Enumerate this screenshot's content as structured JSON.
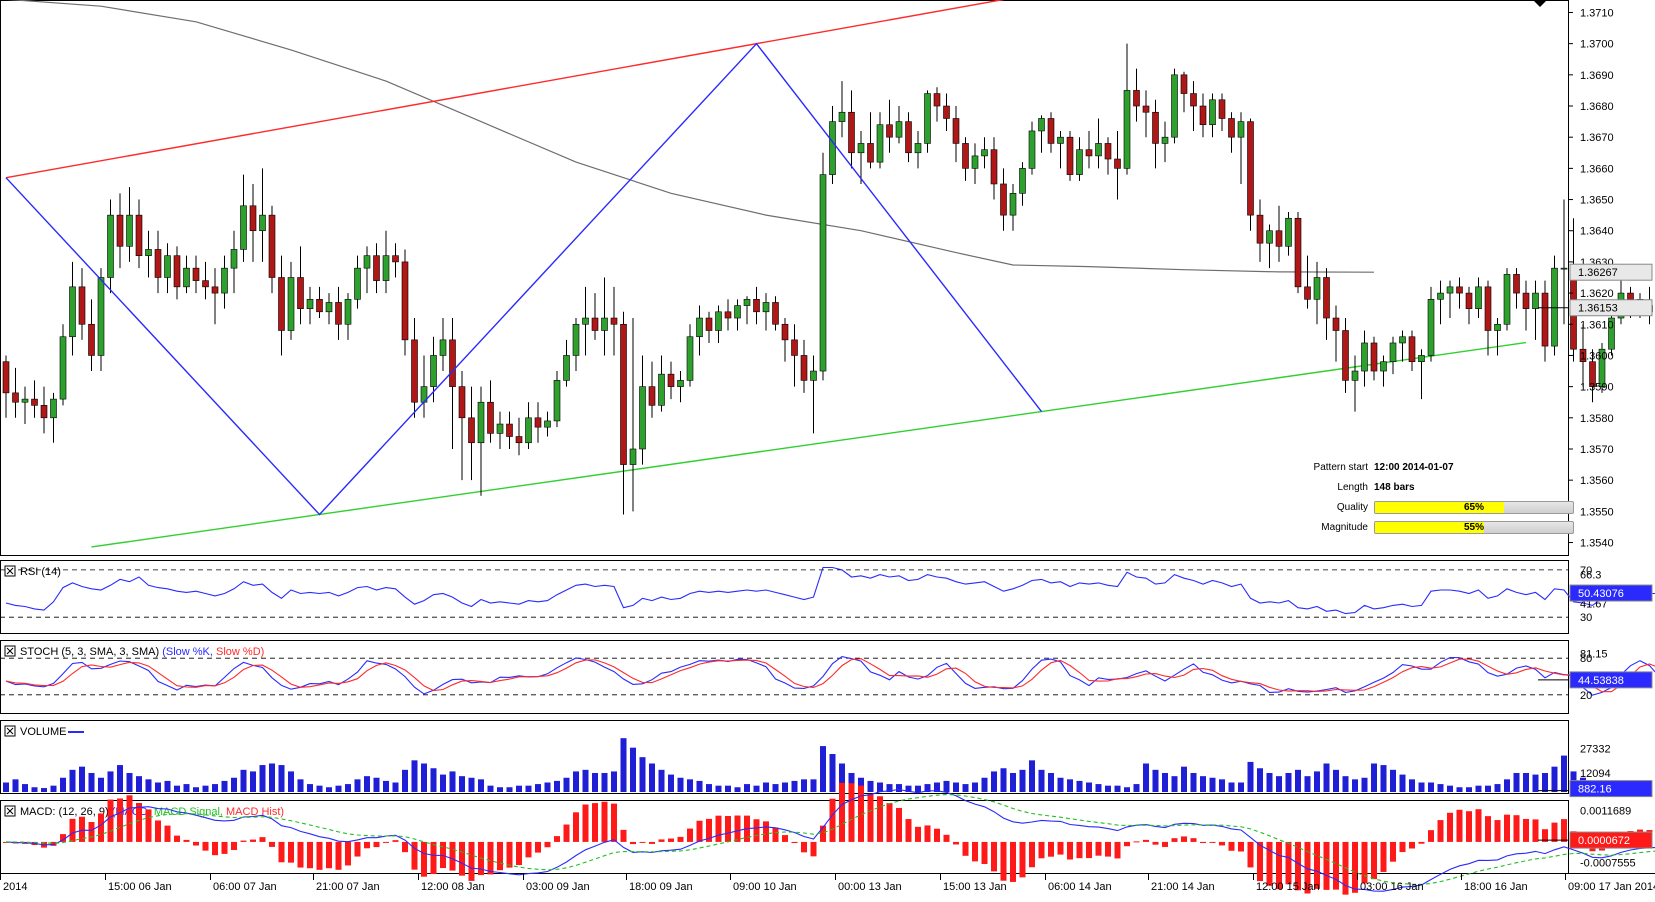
{
  "chart_data": {
    "type": "candlestick",
    "price_axis": {
      "ticks": [
        "1.3540",
        "1.3550",
        "1.3560",
        "1.3570",
        "1.3580",
        "1.3590",
        "1.3600",
        "1.3610",
        "1.3620",
        "1.3630",
        "1.3640",
        "1.3650",
        "1.3660",
        "1.3670",
        "1.3680",
        "1.3690",
        "1.3700",
        "1.3710"
      ],
      "range": [
        1.3536,
        1.3714
      ],
      "ma_value": "1.36267",
      "last_value": "1.36153"
    },
    "time_axis": [
      "2014",
      "15:00 06 Jan",
      "06:00 07 Jan",
      "21:00 07 Jan",
      "12:00 08 Jan",
      "03:00 09 Jan",
      "18:00 09 Jan",
      "09:00 10 Jan",
      "00:00 13 Jan",
      "15:00 13 Jan",
      "06:00 14 Jan",
      "21:00 14 Jan",
      "12:00 15 Jan",
      "03:00 16 Jan",
      "18:00 16 Jan",
      "09:00 17 Jan 2014"
    ],
    "pattern": {
      "zigzag": [
        [
          0,
          1.3657
        ],
        [
          33,
          1.3549
        ],
        [
          79,
          1.37
        ],
        [
          109,
          1.3582
        ]
      ],
      "resistance": [
        [
          0,
          1.3657
        ],
        [
          79,
          1.37
        ]
      ],
      "support": [
        [
          33,
          1.3549
        ],
        [
          109,
          1.3582
        ]
      ]
    },
    "moving_average": [
      [
        -8,
        1.3716
      ],
      [
        10,
        1.3712
      ],
      [
        20,
        1.3707
      ],
      [
        30,
        1.3698
      ],
      [
        40,
        1.3688
      ],
      [
        50,
        1.3675
      ],
      [
        60,
        1.3662
      ],
      [
        70,
        1.3652
      ],
      [
        80,
        1.3645
      ],
      [
        90,
        1.364
      ],
      [
        100,
        1.3633
      ],
      [
        106,
        1.3629
      ],
      [
        114,
        1.36285
      ],
      [
        124,
        1.36275
      ],
      [
        134,
        1.36268
      ],
      [
        144,
        1.36267
      ]
    ]
  },
  "candles": [
    [
      1.3598,
      1.36,
      1.358,
      1.3588
    ],
    [
      1.3588,
      1.3596,
      1.358,
      1.3585
    ],
    [
      1.3585,
      1.359,
      1.3578,
      1.3586
    ],
    [
      1.3586,
      1.3592,
      1.358,
      1.3584
    ],
    [
      1.3584,
      1.359,
      1.3575,
      1.358
    ],
    [
      1.358,
      1.3588,
      1.3572,
      1.3586
    ],
    [
      1.3586,
      1.361,
      1.3584,
      1.3606
    ],
    [
      1.3606,
      1.363,
      1.36,
      1.3622
    ],
    [
      1.3622,
      1.3628,
      1.3605,
      1.361
    ],
    [
      1.361,
      1.3618,
      1.3595,
      1.36
    ],
    [
      1.36,
      1.3628,
      1.3595,
      1.3625
    ],
    [
      1.3625,
      1.365,
      1.362,
      1.3645
    ],
    [
      1.3645,
      1.3652,
      1.3628,
      1.3635
    ],
    [
      1.3635,
      1.3654,
      1.363,
      1.3645
    ],
    [
      1.3645,
      1.365,
      1.3628,
      1.3632
    ],
    [
      1.3632,
      1.364,
      1.3625,
      1.3634
    ],
    [
      1.3634,
      1.364,
      1.362,
      1.3625
    ],
    [
      1.3625,
      1.3636,
      1.362,
      1.3632
    ],
    [
      1.3632,
      1.3635,
      1.3618,
      1.3622
    ],
    [
      1.3622,
      1.3632,
      1.362,
      1.3628
    ],
    [
      1.3628,
      1.3632,
      1.362,
      1.3624
    ],
    [
      1.3624,
      1.363,
      1.3618,
      1.3622
    ],
    [
      1.3622,
      1.3628,
      1.361,
      1.362
    ],
    [
      1.362,
      1.3632,
      1.3615,
      1.3628
    ],
    [
      1.3628,
      1.364,
      1.362,
      1.3634
    ],
    [
      1.3634,
      1.3658,
      1.363,
      1.3648
    ],
    [
      1.3648,
      1.3655,
      1.363,
      1.364
    ],
    [
      1.364,
      1.366,
      1.363,
      1.3645
    ],
    [
      1.3645,
      1.3648,
      1.362,
      1.3625
    ],
    [
      1.3625,
      1.3632,
      1.36,
      1.3608
    ],
    [
      1.3608,
      1.363,
      1.3605,
      1.3625
    ],
    [
      1.3625,
      1.3635,
      1.361,
      1.3615
    ],
    [
      1.3615,
      1.3622,
      1.361,
      1.3618
    ],
    [
      1.3618,
      1.3622,
      1.3612,
      1.3614
    ],
    [
      1.3614,
      1.362,
      1.361,
      1.3617
    ],
    [
      1.3617,
      1.3622,
      1.3605,
      1.361
    ],
    [
      1.361,
      1.362,
      1.3605,
      1.3618
    ],
    [
      1.3618,
      1.3632,
      1.3615,
      1.3628
    ],
    [
      1.3628,
      1.3635,
      1.362,
      1.3632
    ],
    [
      1.3632,
      1.3636,
      1.362,
      1.3624
    ],
    [
      1.3624,
      1.364,
      1.362,
      1.3632
    ],
    [
      1.3632,
      1.3636,
      1.3625,
      1.363
    ],
    [
      1.363,
      1.3634,
      1.36,
      1.3605
    ],
    [
      1.3605,
      1.3612,
      1.358,
      1.3585
    ],
    [
      1.3585,
      1.36,
      1.358,
      1.359
    ],
    [
      1.359,
      1.3606,
      1.3585,
      1.36
    ],
    [
      1.36,
      1.3612,
      1.3595,
      1.3605
    ],
    [
      1.3605,
      1.3612,
      1.357,
      1.359
    ],
    [
      1.359,
      1.3595,
      1.356,
      1.358
    ],
    [
      1.358,
      1.359,
      1.356,
      1.3572
    ],
    [
      1.3572,
      1.359,
      1.3555,
      1.3585
    ],
    [
      1.3585,
      1.3592,
      1.3572,
      1.3575
    ],
    [
      1.3575,
      1.3582,
      1.357,
      1.3578
    ],
    [
      1.3578,
      1.3582,
      1.357,
      1.3574
    ],
    [
      1.3574,
      1.358,
      1.3568,
      1.3572
    ],
    [
      1.3572,
      1.3585,
      1.357,
      1.358
    ],
    [
      1.358,
      1.3585,
      1.3572,
      1.3577
    ],
    [
      1.3577,
      1.3582,
      1.3574,
      1.3579
    ],
    [
      1.3579,
      1.3595,
      1.3577,
      1.3592
    ],
    [
      1.3592,
      1.3605,
      1.359,
      1.36
    ],
    [
      1.36,
      1.3612,
      1.3595,
      1.361
    ],
    [
      1.361,
      1.3622,
      1.36,
      1.3612
    ],
    [
      1.3612,
      1.362,
      1.3605,
      1.3608
    ],
    [
      1.3608,
      1.3625,
      1.36,
      1.3612
    ],
    [
      1.3612,
      1.3622,
      1.36,
      1.361
    ],
    [
      1.361,
      1.3614,
      1.3549,
      1.3565
    ],
    [
      1.3565,
      1.3612,
      1.355,
      1.357
    ],
    [
      1.357,
      1.36,
      1.3565,
      1.359
    ],
    [
      1.359,
      1.3598,
      1.358,
      1.3584
    ],
    [
      1.3584,
      1.36,
      1.3582,
      1.3594
    ],
    [
      1.3594,
      1.3598,
      1.3586,
      1.359
    ],
    [
      1.359,
      1.3595,
      1.3585,
      1.3592
    ],
    [
      1.3592,
      1.361,
      1.359,
      1.3606
    ],
    [
      1.3606,
      1.3616,
      1.36,
      1.3612
    ],
    [
      1.3612,
      1.3614,
      1.3604,
      1.3608
    ],
    [
      1.3608,
      1.3616,
      1.3604,
      1.3614
    ],
    [
      1.3614,
      1.3618,
      1.3608,
      1.3612
    ],
    [
      1.3612,
      1.3618,
      1.3608,
      1.3616
    ],
    [
      1.3616,
      1.3619,
      1.361,
      1.3618
    ],
    [
      1.3618,
      1.3622,
      1.361,
      1.3614
    ],
    [
      1.3614,
      1.362,
      1.3608,
      1.3617
    ],
    [
      1.3617,
      1.3619,
      1.3608,
      1.361
    ],
    [
      1.361,
      1.3612,
      1.3598,
      1.3605
    ],
    [
      1.3605,
      1.361,
      1.359,
      1.36
    ],
    [
      1.36,
      1.3605,
      1.3588,
      1.3592
    ],
    [
      1.3592,
      1.36,
      1.3575,
      1.3595
    ],
    [
      1.3595,
      1.3665,
      1.3592,
      1.3658
    ],
    [
      1.3658,
      1.368,
      1.3655,
      1.3675
    ],
    [
      1.3675,
      1.3688,
      1.367,
      1.3678
    ],
    [
      1.3678,
      1.3685,
      1.366,
      1.3665
    ],
    [
      1.3665,
      1.3672,
      1.3655,
      1.3668
    ],
    [
      1.3668,
      1.3678,
      1.366,
      1.3662
    ],
    [
      1.3662,
      1.3678,
      1.366,
      1.3674
    ],
    [
      1.3674,
      1.3682,
      1.3665,
      1.367
    ],
    [
      1.367,
      1.368,
      1.3668,
      1.3675
    ],
    [
      1.3675,
      1.3678,
      1.3662,
      1.3665
    ],
    [
      1.3665,
      1.3672,
      1.366,
      1.3668
    ],
    [
      1.3668,
      1.3685,
      1.3665,
      1.3684
    ],
    [
      1.3684,
      1.3686,
      1.3675,
      1.368
    ],
    [
      1.368,
      1.3684,
      1.3672,
      1.3676
    ],
    [
      1.3676,
      1.368,
      1.3662,
      1.3668
    ],
    [
      1.3668,
      1.367,
      1.3656,
      1.366
    ],
    [
      1.366,
      1.3668,
      1.3655,
      1.3664
    ],
    [
      1.3664,
      1.367,
      1.366,
      1.3666
    ],
    [
      1.3666,
      1.367,
      1.365,
      1.3655
    ],
    [
      1.3655,
      1.366,
      1.364,
      1.3645
    ],
    [
      1.3645,
      1.3655,
      1.364,
      1.3652
    ],
    [
      1.3652,
      1.3662,
      1.3648,
      1.366
    ],
    [
      1.366,
      1.3675,
      1.3658,
      1.3672
    ],
    [
      1.3672,
      1.3677,
      1.3665,
      1.3676
    ],
    [
      1.3676,
      1.3678,
      1.3665,
      1.3668
    ],
    [
      1.3668,
      1.3672,
      1.366,
      1.367
    ],
    [
      1.367,
      1.3672,
      1.3656,
      1.3658
    ],
    [
      1.3658,
      1.367,
      1.3656,
      1.3666
    ],
    [
      1.3666,
      1.3672,
      1.366,
      1.3664
    ],
    [
      1.3664,
      1.3676,
      1.366,
      1.3668
    ],
    [
      1.3668,
      1.367,
      1.3658,
      1.3663
    ],
    [
      1.3663,
      1.3672,
      1.365,
      1.366
    ],
    [
      1.366,
      1.37,
      1.3658,
      1.3685
    ],
    [
      1.3685,
      1.3692,
      1.3675,
      1.368
    ],
    [
      1.368,
      1.3685,
      1.367,
      1.3678
    ],
    [
      1.3678,
      1.3682,
      1.366,
      1.3668
    ],
    [
      1.3668,
      1.3675,
      1.3662,
      1.367
    ],
    [
      1.367,
      1.3692,
      1.3668,
      1.369
    ],
    [
      1.369,
      1.3691,
      1.3678,
      1.3684
    ],
    [
      1.3684,
      1.3688,
      1.3672,
      1.368
    ],
    [
      1.368,
      1.3684,
      1.367,
      1.3674
    ],
    [
      1.3674,
      1.3684,
      1.367,
      1.3682
    ],
    [
      1.3682,
      1.3684,
      1.3672,
      1.3676
    ],
    [
      1.3676,
      1.3678,
      1.3665,
      1.367
    ],
    [
      1.367,
      1.3678,
      1.3655,
      1.3675
    ],
    [
      1.3675,
      1.3676,
      1.364,
      1.3645
    ],
    [
      1.3645,
      1.365,
      1.363,
      1.3636
    ],
    [
      1.3636,
      1.3642,
      1.3628,
      1.364
    ],
    [
      1.364,
      1.3648,
      1.363,
      1.3635
    ],
    [
      1.3635,
      1.3646,
      1.3632,
      1.3644
    ],
    [
      1.3644,
      1.3646,
      1.362,
      1.3622
    ],
    [
      1.3622,
      1.3632,
      1.3615,
      1.3618
    ],
    [
      1.3618,
      1.363,
      1.361,
      1.3625
    ],
    [
      1.3625,
      1.3628,
      1.3605,
      1.3612
    ],
    [
      1.3612,
      1.3616,
      1.3598,
      1.3608
    ],
    [
      1.3608,
      1.3612,
      1.3588,
      1.3592
    ],
    [
      1.3592,
      1.36,
      1.3582,
      1.3595
    ],
    [
      1.3595,
      1.3608,
      1.359,
      1.3604
    ],
    [
      1.3604,
      1.3606,
      1.3592,
      1.3595
    ],
    [
      1.3595,
      1.36,
      1.359,
      1.3598
    ],
    [
      1.3598,
      1.3606,
      1.3594,
      1.3604
    ],
    [
      1.3604,
      1.3608,
      1.3598,
      1.3606
    ],
    [
      1.3606,
      1.3608,
      1.3595,
      1.3598
    ],
    [
      1.3598,
      1.3602,
      1.3586,
      1.36
    ],
    [
      1.36,
      1.3622,
      1.3598,
      1.3618
    ],
    [
      1.3618,
      1.3624,
      1.361,
      1.362
    ],
    [
      1.362,
      1.3624,
      1.3612,
      1.3622
    ],
    [
      1.3622,
      1.3625,
      1.3615,
      1.362
    ],
    [
      1.362,
      1.3622,
      1.361,
      1.3615
    ],
    [
      1.3615,
      1.3625,
      1.3612,
      1.3622
    ],
    [
      1.3622,
      1.3624,
      1.36,
      1.3608
    ],
    [
      1.3608,
      1.3612,
      1.36,
      1.361
    ],
    [
      1.361,
      1.3628,
      1.3608,
      1.3626
    ],
    [
      1.3626,
      1.3628,
      1.3615,
      1.362
    ],
    [
      1.362,
      1.3624,
      1.3608,
      1.3615
    ],
    [
      1.3615,
      1.3624,
      1.3605,
      1.362
    ],
    [
      1.362,
      1.3624,
      1.3598,
      1.3603
    ],
    [
      1.3603,
      1.3632,
      1.36,
      1.3628
    ],
    [
      1.3628,
      1.365,
      1.361,
      1.3628
    ],
    [
      1.3628,
      1.3644,
      1.3598,
      1.3602
    ],
    [
      1.3602,
      1.361,
      1.359,
      1.3598
    ],
    [
      1.3598,
      1.3602,
      1.3585,
      1.359
    ],
    [
      1.359,
      1.3604,
      1.3588,
      1.3602
    ],
    [
      1.3602,
      1.3615,
      1.36,
      1.3612
    ],
    [
      1.3612,
      1.3624,
      1.361,
      1.362
    ],
    [
      1.362,
      1.3622,
      1.3612,
      1.3618
    ],
    [
      1.3618,
      1.362,
      1.3612,
      1.3616
    ],
    [
      1.3616,
      1.3622,
      1.361,
      1.3614
    ],
    [
      1.3614,
      1.3618,
      1.361,
      1.3612
    ],
    [
      1.3612,
      1.3618,
      1.361,
      1.3616
    ],
    [
      1.3616,
      1.3619,
      1.3612,
      1.3614
    ],
    [
      1.3614,
      1.362,
      1.3612,
      1.36153
    ]
  ],
  "info": {
    "pattern_start_label": "Pattern start",
    "pattern_start_value": "12:00 2014-01-07",
    "length_label": "Length",
    "length_value": "148 bars",
    "quality_label": "Quality",
    "quality_value": "65%",
    "quality_fraction": 0.65,
    "magnitude_label": "Magnitude",
    "magnitude_value": "55%",
    "magnitude_fraction": 0.55
  },
  "rsi": {
    "title": "RSI (14)",
    "ticks": [
      "70",
      "66.3",
      "41.67",
      "30"
    ],
    "last_value": "50.43076",
    "values": [
      42,
      40,
      39,
      37,
      36,
      43,
      55,
      59,
      56,
      54,
      53,
      57,
      62,
      60,
      64,
      57,
      55,
      54,
      52,
      51,
      52,
      50,
      48,
      50,
      54,
      60,
      57,
      58,
      51,
      46,
      53,
      50,
      51,
      50,
      51,
      48,
      51,
      55,
      56,
      53,
      55,
      54,
      47,
      41,
      44,
      49,
      50,
      47,
      42,
      39,
      45,
      42,
      43,
      42,
      41,
      44,
      43,
      44,
      49,
      53,
      57,
      58,
      56,
      57,
      56,
      38,
      40,
      46,
      44,
      47,
      45,
      46,
      50,
      52,
      51,
      52,
      51,
      52,
      53,
      52,
      53,
      51,
      49,
      47,
      45,
      47,
      72,
      72,
      70,
      64,
      65,
      63,
      66,
      64,
      65,
      61,
      62,
      66,
      64,
      63,
      60,
      58,
      59,
      60,
      56,
      52,
      54,
      57,
      61,
      62,
      59,
      60,
      56,
      59,
      58,
      59,
      57,
      56,
      68,
      64,
      63,
      58,
      59,
      66,
      63,
      61,
      58,
      61,
      59,
      56,
      58,
      46,
      42,
      43,
      42,
      44,
      38,
      37,
      39,
      35,
      36,
      33,
      34,
      40,
      37,
      38,
      40,
      41,
      39,
      40,
      52,
      53,
      53,
      52,
      50,
      53,
      46,
      48,
      54,
      51,
      49,
      51,
      45,
      54,
      53,
      43,
      42,
      40,
      46,
      50,
      52,
      51,
      51,
      50,
      50,
      51,
      50,
      50.43
    ]
  },
  "stoch": {
    "title": "STOCH (5, 3, SMA, 3, SMA)",
    "k_label": "(Slow %K,",
    "d_label": "Slow %D)",
    "ticks": [
      "80",
      "81.15",
      "20"
    ],
    "last_value": "44.53838"
  },
  "volume": {
    "title": "VOLUME",
    "ticks": [
      "27332",
      "12094",
      "882.16"
    ],
    "max": 36000,
    "values": [
      6000,
      8000,
      5000,
      3000,
      2500,
      4000,
      9000,
      14000,
      16000,
      12000,
      9000,
      13000,
      17000,
      12000,
      10000,
      8000,
      6000,
      7000,
      4000,
      5000,
      3000,
      4000,
      5000,
      7000,
      9000,
      14000,
      13000,
      17000,
      18000,
      17000,
      13000,
      8000,
      5000,
      4000,
      3000,
      4000,
      5000,
      8000,
      10000,
      9000,
      7000,
      6000,
      14000,
      20000,
      18000,
      15000,
      11000,
      13000,
      10000,
      9000,
      8000,
      4000,
      3000,
      3000,
      4000,
      4000,
      5000,
      6000,
      7000,
      9000,
      13000,
      14000,
      12000,
      12000,
      13000,
      34000,
      28000,
      22000,
      18000,
      14000,
      11000,
      9000,
      8000,
      7000,
      5000,
      4000,
      4000,
      3000,
      5000,
      4000,
      6000,
      5000,
      6000,
      7000,
      8000,
      8000,
      29000,
      24000,
      18000,
      12000,
      9000,
      7000,
      6000,
      5000,
      5000,
      4000,
      4000,
      5000,
      6000,
      7000,
      6000,
      5000,
      6000,
      9000,
      13000,
      15000,
      12000,
      14000,
      20000,
      14000,
      12000,
      9000,
      8000,
      7000,
      6000,
      5000,
      4000,
      4000,
      3000,
      5000,
      18000,
      14000,
      12000,
      10000,
      16000,
      12000,
      10000,
      9000,
      8000,
      6000,
      6000,
      19000,
      15000,
      12000,
      10000,
      12000,
      14000,
      10000,
      13000,
      18000,
      14000,
      10000,
      8000,
      9000,
      18000,
      17000,
      14000,
      11000,
      8000,
      6000,
      6000,
      5000,
      4000,
      3000,
      3000,
      4000,
      4000,
      5000,
      8000,
      12000,
      12000,
      11000,
      12000,
      16000,
      23000,
      13000,
      9000,
      7000,
      4000,
      4000,
      3000,
      3000,
      2000,
      2000,
      2000,
      1500,
      1200,
      882
    ]
  },
  "macd": {
    "title": "MACD: (12, 26, 9)",
    "macd_label": "(MACD,",
    "signal_label": "MACD Signal,",
    "hist_label": "MACD Hist)",
    "ticks": [
      "0.0011689",
      "-0.0007555"
    ],
    "last_value": "0.0000672"
  }
}
